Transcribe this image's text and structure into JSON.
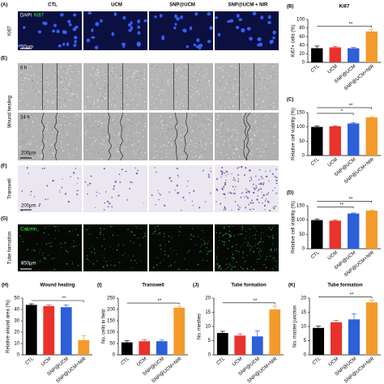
{
  "figure": {
    "column_headers": [
      "CTL",
      "UCM",
      "SNP@UCM",
      "SNP@UCM + NIR"
    ],
    "panel_a": {
      "letter": "(A)",
      "row_label": "Ki67",
      "stain_dapi": "DAPI",
      "stain_ki67": "Ki67",
      "scale": "50μm"
    },
    "panel_e": {
      "letter": "(E)",
      "row_label": "Wound healing",
      "time_0": "0 h",
      "time_24": "24 h",
      "scale": "200μm"
    },
    "panel_f": {
      "letter": "(F)",
      "row_label": "Transwell",
      "scale": "200μm"
    },
    "panel_g": {
      "letter": "(G)",
      "row_label": "Tube formation",
      "stain": "Calcein",
      "scale": "850μm"
    }
  },
  "chart_data": [
    {
      "type": "bar",
      "panel": "(B)",
      "title": "Ki67",
      "y_label": "Ki67+ cells (%)",
      "categories": [
        "CTL",
        "UCM",
        "SNP@UCM",
        "SNP@UCM+NIR"
      ],
      "values": [
        33,
        35,
        33,
        72
      ],
      "errors": [
        5,
        2,
        2,
        5
      ],
      "colors": [
        "#000000",
        "#e8322b",
        "#2c5fd8",
        "#f39a2b"
      ],
      "ylim": [
        0,
        100
      ],
      "yticks": [
        0,
        20,
        40,
        60,
        80,
        100
      ],
      "annotations": [
        "**"
      ]
    },
    {
      "type": "bar",
      "panel": "(C)",
      "title": "",
      "y_label": "Relative cell viability (%)",
      "categories": [
        "CTL",
        "UCM",
        "SNP@UCM",
        "SNP@UCM+NIR"
      ],
      "values": [
        100,
        102,
        112,
        133
      ],
      "errors": [
        3,
        2,
        3,
        3
      ],
      "colors": [
        "#000000",
        "#e8322b",
        "#2c5fd8",
        "#f39a2b"
      ],
      "ylim": [
        0,
        150
      ],
      "yticks": [
        0,
        50,
        100,
        150
      ],
      "annotations": [
        "*",
        "**"
      ]
    },
    {
      "type": "bar",
      "panel": "(D)",
      "title": "",
      "y_label": "Relative cell viability (%)",
      "categories": [
        "CTL",
        "UCM",
        "SNP@UCM",
        "SNP@UCM+NIR"
      ],
      "values": [
        100,
        98,
        123,
        133
      ],
      "errors": [
        4,
        3,
        2,
        2
      ],
      "colors": [
        "#000000",
        "#e8322b",
        "#2c5fd8",
        "#f39a2b"
      ],
      "ylim": [
        0,
        150
      ],
      "yticks": [
        0,
        50,
        100,
        150
      ],
      "annotations": [
        "**",
        "**"
      ]
    },
    {
      "type": "bar",
      "panel": "(H)",
      "title": "Wound healing",
      "y_label": "Relative wound area (%)",
      "categories": [
        "CTL",
        "UCM",
        "SNP@UCM",
        "SNP@UCM+NIR"
      ],
      "values": [
        44,
        43,
        42,
        13
      ],
      "errors": [
        1,
        1,
        2,
        4
      ],
      "colors": [
        "#000000",
        "#e8322b",
        "#2c5fd8",
        "#f39a2b"
      ],
      "ylim": [
        0,
        50
      ],
      "yticks": [
        0,
        10,
        20,
        30,
        40,
        50
      ],
      "annotations": [
        "**"
      ]
    },
    {
      "type": "bar",
      "panel": "(I)",
      "title": "Transwell",
      "y_label": "No. cells in field",
      "categories": [
        "CTL",
        "UCM",
        "SNP@UCM",
        "SNP@UCM+NIR"
      ],
      "values": [
        55,
        60,
        60,
        208
      ],
      "errors": [
        7,
        6,
        5,
        6
      ],
      "colors": [
        "#000000",
        "#e8322b",
        "#2c5fd8",
        "#f39a2b"
      ],
      "ylim": [
        0,
        250
      ],
      "yticks": [
        0,
        50,
        100,
        150,
        200,
        250
      ],
      "annotations": [
        "**"
      ]
    },
    {
      "type": "bar",
      "panel": "(J)",
      "title": "Tube formation",
      "y_label": "No. meshes",
      "categories": [
        "CTL",
        "UCM",
        "SNP@UCM",
        "SNP@UCM+NIR"
      ],
      "values": [
        7.7,
        6.8,
        6.5,
        16
      ],
      "errors": [
        0.6,
        0.6,
        2,
        1.2
      ],
      "colors": [
        "#000000",
        "#e8322b",
        "#2c5fd8",
        "#f39a2b"
      ],
      "ylim": [
        0,
        20
      ],
      "yticks": [
        0,
        5,
        10,
        15,
        20
      ],
      "annotations": [
        "**"
      ]
    },
    {
      "type": "bar",
      "panel": "(K)",
      "title": "Tube formation",
      "y_label": "No. master junction",
      "categories": [
        "CTL",
        "UCM",
        "SNP@UCM",
        "SNP@UCM+NIR"
      ],
      "values": [
        9.5,
        11.5,
        12.5,
        18.5
      ],
      "errors": [
        0.6,
        0.6,
        2,
        0.8
      ],
      "colors": [
        "#000000",
        "#e8322b",
        "#2c5fd8",
        "#f39a2b"
      ],
      "ylim": [
        0,
        20
      ],
      "yticks": [
        0,
        5,
        10,
        15,
        20
      ],
      "annotations": [
        "**"
      ]
    }
  ]
}
